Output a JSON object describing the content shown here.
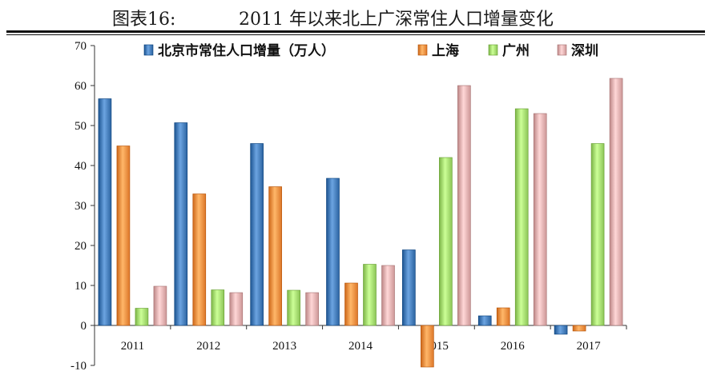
{
  "header": {
    "figure_label": "图表16:",
    "title": "2011 年以来北上广深常住人口增量变化"
  },
  "chart_data": {
    "type": "bar",
    "categories": [
      "2011",
      "2012",
      "2013",
      "2014",
      "2015",
      "2016",
      "2017"
    ],
    "series": [
      {
        "name": "北京市常住人口增量（万人）",
        "color": "#3f77b4",
        "values": [
          56.7,
          50.7,
          45.5,
          36.8,
          18.9,
          2.4,
          -2.2
        ]
      },
      {
        "name": "上海",
        "color": "#f08a3c",
        "values": [
          44.9,
          32.9,
          34.7,
          10.6,
          -10.4,
          4.4,
          -1.4
        ]
      },
      {
        "name": "广州",
        "color": "#9fd86a",
        "values": [
          4.3,
          8.9,
          8.8,
          15.3,
          42.0,
          54.2,
          45.5
        ]
      },
      {
        "name": "深圳",
        "color": "#e0aaaa",
        "values": [
          9.8,
          8.2,
          8.2,
          15.0,
          60.0,
          53.0,
          61.8
        ]
      }
    ],
    "ylim": [
      -10,
      70
    ],
    "y_ticks": [
      "-10",
      "0",
      "10",
      "20",
      "30",
      "40",
      "50",
      "60",
      "70"
    ],
    "legend_position": "top",
    "grid": false,
    "xlabel": "",
    "ylabel": ""
  }
}
